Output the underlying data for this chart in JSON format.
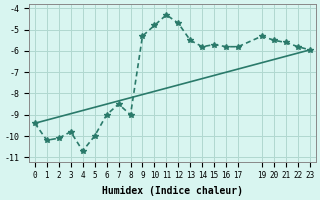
{
  "xlabel": "Humidex (Indice chaleur)",
  "ylabel": "",
  "bg_color": "#d8f5f0",
  "grid_color": "#b0d8d0",
  "line_color": "#2a7a6a",
  "curve_x": [
    0,
    1,
    2,
    3,
    4,
    5,
    6,
    7,
    8,
    9,
    10,
    11,
    12,
    13,
    14,
    15,
    16,
    17,
    19,
    20,
    21,
    22,
    23
  ],
  "curve_y": [
    -9.4,
    -10.2,
    -10.1,
    -9.8,
    -10.7,
    -10.0,
    -9.0,
    -8.5,
    -9.0,
    -5.3,
    -4.8,
    -4.3,
    -4.7,
    -5.5,
    -5.8,
    -5.7,
    -5.8,
    -5.8,
    -5.3,
    -5.5,
    -5.6,
    -5.8,
    -5.95
  ],
  "line_x": [
    0,
    23
  ],
  "line_y": [
    -9.4,
    -5.95
  ],
  "xlim": [
    -0.5,
    23.5
  ],
  "ylim": [
    -11.2,
    -3.8
  ],
  "yticks": [
    -4,
    -5,
    -6,
    -7,
    -8,
    -9,
    -10,
    -11
  ],
  "xticks": [
    0,
    1,
    2,
    3,
    4,
    5,
    6,
    7,
    8,
    9,
    10,
    11,
    12,
    13,
    14,
    15,
    16,
    17,
    19,
    20,
    21,
    22,
    23
  ]
}
